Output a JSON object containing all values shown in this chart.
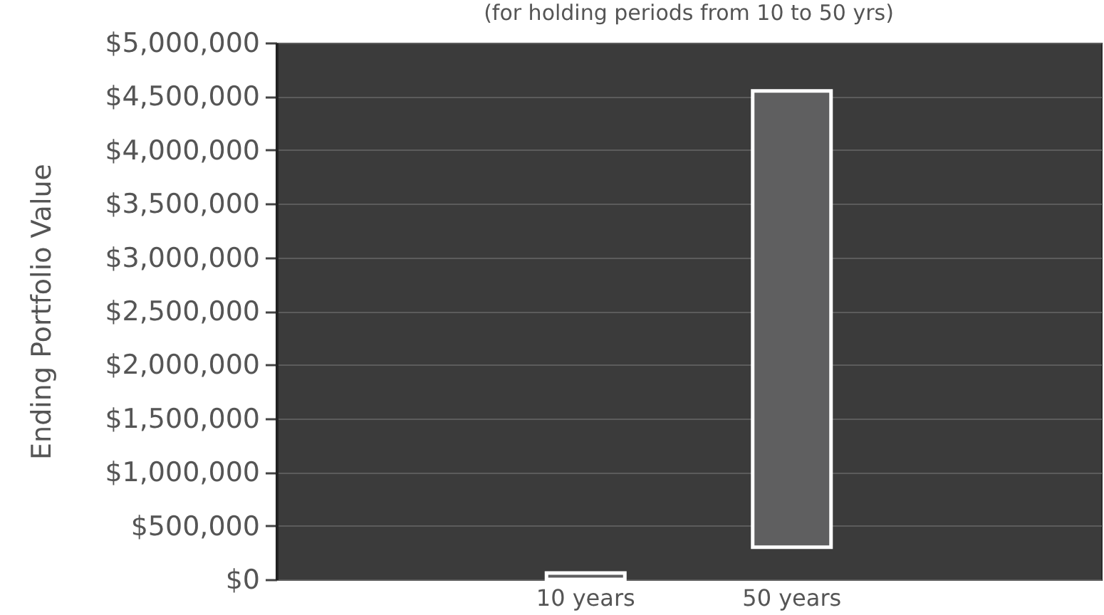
{
  "chart_data": {
    "type": "bar",
    "title": "(for holding periods from 10 to 50 yrs)",
    "ylabel": "Ending Portfolio Value",
    "categories": [
      null,
      "10 years",
      "50 years",
      null
    ],
    "values": [
      null,
      60000,
      4250000,
      null
    ],
    "base": [
      null,
      0,
      300000,
      null
    ],
    "colors": [
      "#5f5f60",
      "#5f5f60",
      "#5f5f60",
      "#5f5f60"
    ],
    "ylim": [
      0,
      5000000
    ],
    "yticks": [
      {
        "value": 0,
        "label": "$0"
      },
      {
        "value": 500000,
        "label": "$500,000"
      },
      {
        "value": 1000000,
        "label": "$1,000,000"
      },
      {
        "value": 1500000,
        "label": "$1,500,000"
      },
      {
        "value": 2000000,
        "label": "$2,000,000"
      },
      {
        "value": 2500000,
        "label": "$2,500,000"
      },
      {
        "value": 3000000,
        "label": "$3,000,000"
      },
      {
        "value": 3500000,
        "label": "$3,500,000"
      },
      {
        "value": 4000000,
        "label": "$4,000,000"
      },
      {
        "value": 4500000,
        "label": "$4,500,000"
      },
      {
        "value": 5000000,
        "label": "$5,000,000"
      }
    ],
    "grid": "y"
  }
}
